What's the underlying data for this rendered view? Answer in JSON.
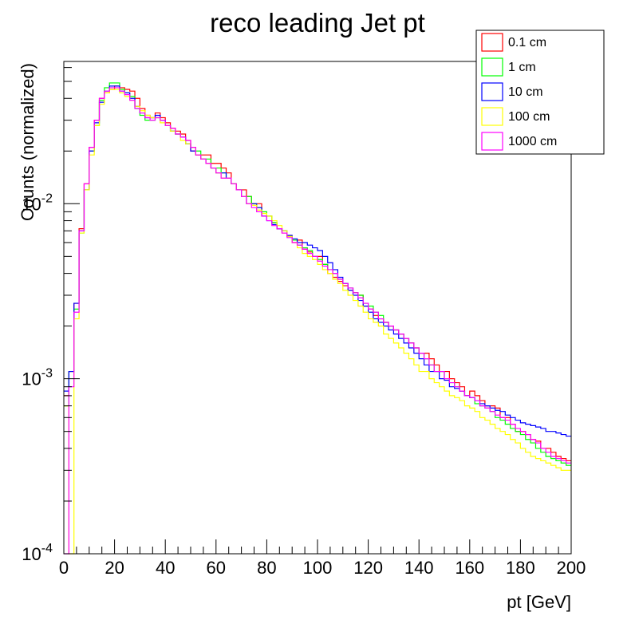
{
  "chart_data": {
    "type": "line",
    "title": "reco leading Jet pt",
    "xlabel": "pt [GeV]",
    "ylabel": "Counts (normalized)",
    "xlim": [
      0,
      200
    ],
    "ylim": [
      0.0001,
      0.065
    ],
    "yscale": "log",
    "grid": false,
    "legend_position": "top-right",
    "bin_width": 2,
    "x_ticks": [
      0,
      20,
      40,
      60,
      80,
      100,
      120,
      140,
      160,
      180,
      200
    ],
    "x_tick_labels": [
      "0",
      "20",
      "40",
      "60",
      "80",
      "100",
      "120",
      "140",
      "160",
      "180",
      "200"
    ],
    "y_ticks": [
      0.0001,
      0.001,
      0.01
    ],
    "y_tick_labels": [
      {
        "base": "10",
        "exp": "-4"
      },
      {
        "base": "10",
        "exp": "-3"
      },
      {
        "base": "10",
        "exp": "-2"
      }
    ],
    "series": [
      {
        "name": "0.1 cm",
        "color": "#ff0000",
        "values": [
          0.0008,
          0.0011,
          0.0027,
          0.0072,
          0.013,
          0.021,
          0.03,
          0.04,
          0.043,
          0.045,
          0.047,
          0.046,
          0.045,
          0.044,
          0.04,
          0.035,
          0.032,
          0.031,
          0.033,
          0.031,
          0.029,
          0.027,
          0.026,
          0.025,
          0.023,
          0.02,
          0.019,
          0.019,
          0.019,
          0.017,
          0.017,
          0.016,
          0.015,
          0.013,
          0.012,
          0.012,
          0.011,
          0.01,
          0.01,
          0.0085,
          0.0085,
          0.0078,
          0.0072,
          0.0068,
          0.0065,
          0.006,
          0.0062,
          0.0055,
          0.0053,
          0.005,
          0.005,
          0.0045,
          0.004,
          0.0038,
          0.0036,
          0.0034,
          0.0032,
          0.0031,
          0.003,
          0.0026,
          0.0025,
          0.0023,
          0.0022,
          0.0021,
          0.002,
          0.0019,
          0.0018,
          0.0017,
          0.0016,
          0.0015,
          0.0014,
          0.0014,
          0.0013,
          0.0012,
          0.0011,
          0.0011,
          0.001,
          0.00095,
          0.0009,
          0.0008,
          0.00085,
          0.0008,
          0.00075,
          0.0007,
          0.0007,
          0.00068,
          0.0006,
          0.0006,
          0.00055,
          0.0005,
          0.0005,
          0.00048,
          0.00045,
          0.00044,
          0.0004,
          0.0004,
          0.00038,
          0.00036,
          0.00035,
          0.00034
        ]
      },
      {
        "name": "1 cm",
        "color": "#00ff00",
        "values": [
          0.0007,
          0.0011,
          0.0025,
          0.0068,
          0.012,
          0.02,
          0.028,
          0.039,
          0.046,
          0.049,
          0.049,
          0.045,
          0.043,
          0.041,
          0.035,
          0.032,
          0.03,
          0.03,
          0.031,
          0.03,
          0.028,
          0.026,
          0.025,
          0.024,
          0.022,
          0.021,
          0.02,
          0.018,
          0.018,
          0.016,
          0.016,
          0.015,
          0.014,
          0.013,
          0.012,
          0.011,
          0.011,
          0.01,
          0.0095,
          0.009,
          0.0085,
          0.0078,
          0.0072,
          0.007,
          0.0065,
          0.0062,
          0.0058,
          0.0056,
          0.0054,
          0.005,
          0.0048,
          0.0045,
          0.0042,
          0.004,
          0.0037,
          0.0035,
          0.0033,
          0.0031,
          0.003,
          0.0027,
          0.0026,
          0.0024,
          0.0023,
          0.0021,
          0.002,
          0.0019,
          0.0018,
          0.0017,
          0.0016,
          0.0015,
          0.0014,
          0.0013,
          0.0012,
          0.0011,
          0.0011,
          0.001,
          0.00095,
          0.0009,
          0.00085,
          0.0008,
          0.00078,
          0.00072,
          0.0007,
          0.00068,
          0.00065,
          0.0006,
          0.00058,
          0.00055,
          0.00052,
          0.0005,
          0.00048,
          0.00045,
          0.00043,
          0.0004,
          0.00038,
          0.00036,
          0.00035,
          0.00034,
          0.00033,
          0.00032
        ]
      },
      {
        "name": "10 cm",
        "color": "#0000ff",
        "values": [
          0.00085,
          0.0011,
          0.0027,
          0.007,
          0.012,
          0.02,
          0.029,
          0.038,
          0.044,
          0.047,
          0.047,
          0.044,
          0.043,
          0.04,
          0.036,
          0.033,
          0.031,
          0.031,
          0.032,
          0.03,
          0.028,
          0.026,
          0.025,
          0.024,
          0.022,
          0.02,
          0.019,
          0.018,
          0.017,
          0.016,
          0.015,
          0.015,
          0.014,
          0.013,
          0.012,
          0.011,
          0.01,
          0.01,
          0.0095,
          0.0085,
          0.008,
          0.0076,
          0.0072,
          0.007,
          0.0066,
          0.0063,
          0.006,
          0.006,
          0.0058,
          0.0056,
          0.0054,
          0.005,
          0.0046,
          0.0042,
          0.0038,
          0.0035,
          0.0032,
          0.003,
          0.0028,
          0.0026,
          0.0024,
          0.0022,
          0.0021,
          0.002,
          0.0019,
          0.0018,
          0.0017,
          0.0016,
          0.0015,
          0.0014,
          0.0013,
          0.0012,
          0.0011,
          0.0011,
          0.001,
          0.00098,
          0.0009,
          0.00088,
          0.00085,
          0.0008,
          0.00078,
          0.00075,
          0.00072,
          0.0007,
          0.00068,
          0.00066,
          0.00065,
          0.00062,
          0.0006,
          0.00058,
          0.00056,
          0.00055,
          0.00054,
          0.00053,
          0.00052,
          0.0005,
          0.0005,
          0.00049,
          0.00048,
          0.00047
        ]
      },
      {
        "name": "100 cm",
        "color": "#ffff00",
        "values": [
          0.0007,
          0.0001,
          0.0022,
          0.0068,
          0.012,
          0.019,
          0.028,
          0.037,
          0.043,
          0.045,
          0.045,
          0.043,
          0.041,
          0.039,
          0.036,
          0.034,
          0.032,
          0.031,
          0.031,
          0.029,
          0.028,
          0.026,
          0.025,
          0.023,
          0.022,
          0.021,
          0.019,
          0.018,
          0.017,
          0.016,
          0.015,
          0.014,
          0.014,
          0.013,
          0.012,
          0.011,
          0.01,
          0.0098,
          0.0092,
          0.0088,
          0.0085,
          0.008,
          0.0075,
          0.007,
          0.0065,
          0.006,
          0.0056,
          0.0052,
          0.005,
          0.0048,
          0.0045,
          0.0042,
          0.004,
          0.0037,
          0.0035,
          0.0032,
          0.003,
          0.0028,
          0.0026,
          0.0024,
          0.0022,
          0.0021,
          0.002,
          0.0018,
          0.0017,
          0.0016,
          0.0015,
          0.0014,
          0.0013,
          0.0012,
          0.0011,
          0.0011,
          0.001,
          0.00095,
          0.0009,
          0.00085,
          0.0008,
          0.00078,
          0.00075,
          0.0007,
          0.00068,
          0.00065,
          0.0006,
          0.00058,
          0.00055,
          0.00052,
          0.0005,
          0.00048,
          0.00045,
          0.00043,
          0.0004,
          0.00038,
          0.00036,
          0.00035,
          0.00034,
          0.00033,
          0.00032,
          0.00031,
          0.0003,
          0.0003
        ]
      },
      {
        "name": "1000 cm",
        "color": "#ff00ff",
        "values": [
          0.0001,
          0.0009,
          0.0024,
          0.007,
          0.013,
          0.021,
          0.03,
          0.04,
          0.044,
          0.046,
          0.046,
          0.044,
          0.042,
          0.039,
          0.035,
          0.033,
          0.031,
          0.03,
          0.031,
          0.03,
          0.028,
          0.027,
          0.025,
          0.024,
          0.023,
          0.021,
          0.019,
          0.018,
          0.017,
          0.016,
          0.015,
          0.014,
          0.014,
          0.013,
          0.012,
          0.011,
          0.01,
          0.0095,
          0.009,
          0.0085,
          0.008,
          0.0075,
          0.0072,
          0.0068,
          0.0064,
          0.006,
          0.0058,
          0.0055,
          0.0052,
          0.005,
          0.0047,
          0.0044,
          0.0042,
          0.004,
          0.0037,
          0.0035,
          0.0033,
          0.0031,
          0.0029,
          0.0027,
          0.0025,
          0.0024,
          0.0022,
          0.0021,
          0.002,
          0.0019,
          0.0018,
          0.0017,
          0.0016,
          0.0015,
          0.0014,
          0.0013,
          0.0012,
          0.0011,
          0.0011,
          0.001,
          0.00095,
          0.0009,
          0.00085,
          0.0008,
          0.00078,
          0.00075,
          0.0007,
          0.00068,
          0.00065,
          0.00062,
          0.0006,
          0.00058,
          0.00055,
          0.00052,
          0.0005,
          0.00048,
          0.00045,
          0.00043,
          0.0004,
          0.00038,
          0.00036,
          0.00035,
          0.00034,
          0.00033
        ]
      }
    ]
  }
}
